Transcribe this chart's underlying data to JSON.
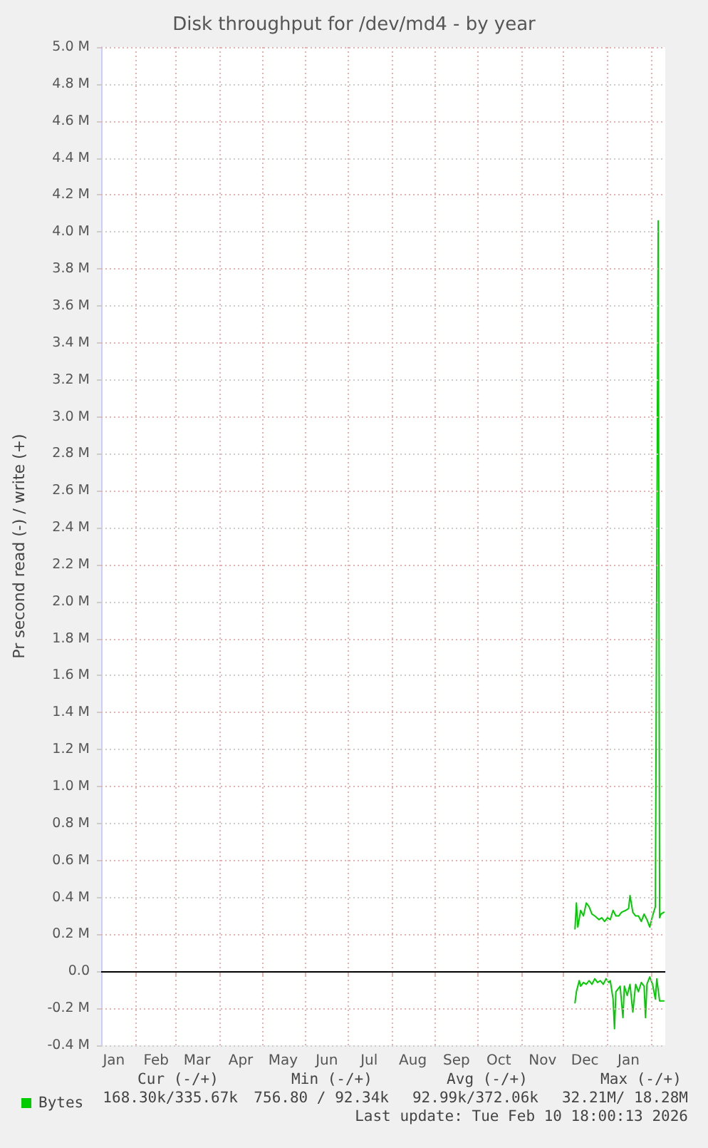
{
  "chart_data": {
    "type": "line",
    "title": "Disk throughput for /dev/md4 - by year",
    "ylabel": "Pr second read (-) / write (+)",
    "xlim": [
      "2025-01-07",
      "2026-02-11"
    ],
    "xticks": [
      {
        "value": "2025-01-16",
        "label": "Jan"
      },
      {
        "value": "2025-02-01",
        "label": null
      },
      {
        "value": "2025-02-15",
        "label": "Feb"
      },
      {
        "value": "2025-03-01",
        "label": null
      },
      {
        "value": "2025-03-16",
        "label": "Mar"
      },
      {
        "value": "2025-04-01",
        "label": null
      },
      {
        "value": "2025-04-16",
        "label": "Apr"
      },
      {
        "value": "2025-05-01",
        "label": null
      },
      {
        "value": "2025-05-16",
        "label": "May"
      },
      {
        "value": "2025-06-01",
        "label": null
      },
      {
        "value": "2025-06-16",
        "label": "Jun"
      },
      {
        "value": "2025-07-01",
        "label": null
      },
      {
        "value": "2025-07-16",
        "label": "Jul"
      },
      {
        "value": "2025-08-01",
        "label": null
      },
      {
        "value": "2025-08-16",
        "label": "Aug"
      },
      {
        "value": "2025-09-01",
        "label": null
      },
      {
        "value": "2025-09-16",
        "label": "Sep"
      },
      {
        "value": "2025-10-01",
        "label": null
      },
      {
        "value": "2025-10-16",
        "label": "Oct"
      },
      {
        "value": "2025-11-01",
        "label": null
      },
      {
        "value": "2025-11-16",
        "label": "Nov"
      },
      {
        "value": "2025-12-01",
        "label": null
      },
      {
        "value": "2025-12-16",
        "label": "Dec"
      },
      {
        "value": "2026-01-01",
        "label": null
      },
      {
        "value": "2026-01-16",
        "label": "Jan"
      },
      {
        "value": "2026-02-01",
        "label": null
      }
    ],
    "ylim": [
      -0.4,
      5.0
    ],
    "yticks": [
      {
        "value": -0.4,
        "label": "-0.4 M"
      },
      {
        "value": -0.2,
        "label": "-0.2 M"
      },
      {
        "value": 0,
        "label": "0.0"
      },
      {
        "value": 0.2,
        "label": "0.2 M"
      },
      {
        "value": 0.4,
        "label": "0.4 M"
      },
      {
        "value": 0.6,
        "label": "0.6 M"
      },
      {
        "value": 0.8,
        "label": "0.8 M"
      },
      {
        "value": 1.0,
        "label": "1.0 M"
      },
      {
        "value": 1.2,
        "label": "1.2 M"
      },
      {
        "value": 1.4,
        "label": "1.4 M"
      },
      {
        "value": 1.6,
        "label": "1.6 M"
      },
      {
        "value": 1.8,
        "label": "1.8 M"
      },
      {
        "value": 2.0,
        "label": "2.0 M"
      },
      {
        "value": 2.2,
        "label": "2.2 M"
      },
      {
        "value": 2.4,
        "label": "2.4 M"
      },
      {
        "value": 2.6,
        "label": "2.6 M"
      },
      {
        "value": 2.8,
        "label": "2.8 M"
      },
      {
        "value": 3.0,
        "label": "3.0 M"
      },
      {
        "value": 3.2,
        "label": "3.2 M"
      },
      {
        "value": 3.4,
        "label": "3.4 M"
      },
      {
        "value": 3.6,
        "label": "3.6 M"
      },
      {
        "value": 3.8,
        "label": "3.8 M"
      },
      {
        "value": 4.0,
        "label": "4.0 M"
      },
      {
        "value": 4.2,
        "label": "4.2 M"
      },
      {
        "value": 4.4,
        "label": "4.4 M"
      },
      {
        "value": 4.6,
        "label": "4.6 M"
      },
      {
        "value": 4.8,
        "label": "4.8 M"
      },
      {
        "value": 5.0,
        "label": "5.0 M"
      }
    ],
    "series": [
      {
        "name": "Bytes",
        "color": "#00cc00",
        "x": [
          "2025-12-09",
          "2025-12-10",
          "2025-12-11",
          "2025-12-13",
          "2025-12-15",
          "2025-12-17",
          "2025-12-19",
          "2025-12-21",
          "2025-12-23",
          "2025-12-26",
          "2025-12-28",
          "2025-12-30",
          "2026-01-01",
          "2026-01-03",
          "2026-01-05",
          "2026-01-07",
          "2026-01-09",
          "2026-01-11",
          "2026-01-14",
          "2026-01-16",
          "2026-01-17",
          "2026-01-19",
          "2026-01-21",
          "2026-01-23",
          "2026-01-25",
          "2026-01-27",
          "2026-01-29",
          "2026-01-31",
          "2026-02-02",
          "2026-02-04",
          "2026-02-06",
          "2026-02-07",
          "2026-02-08",
          "2026-02-10"
        ],
        "values": [
          0.23,
          0.37,
          0.24,
          0.33,
          0.3,
          0.37,
          0.35,
          0.31,
          0.3,
          0.28,
          0.29,
          0.27,
          0.29,
          0.28,
          0.33,
          0.3,
          0.3,
          0.32,
          0.33,
          0.34,
          0.41,
          0.32,
          0.3,
          0.3,
          0.27,
          0.31,
          0.28,
          0.24,
          0.3,
          0.35,
          4.06,
          0.29,
          0.31,
          0.32
        ]
      },
      {
        "color": "#00cc00",
        "x": [
          "2025-12-09",
          "2025-12-10",
          "2025-12-12",
          "2025-12-13",
          "2025-12-15",
          "2025-12-17",
          "2025-12-19",
          "2025-12-21",
          "2025-12-23",
          "2025-12-25",
          "2025-12-27",
          "2025-12-29",
          "2025-12-31",
          "2026-01-02",
          "2026-01-03",
          "2026-01-05",
          "2026-01-06",
          "2026-01-07",
          "2026-01-10",
          "2026-01-12",
          "2026-01-13",
          "2026-01-15",
          "2026-01-17",
          "2026-01-19",
          "2026-01-21",
          "2026-01-23",
          "2026-01-25",
          "2026-01-27",
          "2026-01-28",
          "2026-01-29",
          "2026-01-31",
          "2026-02-02",
          "2026-02-04",
          "2026-02-05",
          "2026-02-07",
          "2026-02-10"
        ],
        "values": [
          -0.17,
          -0.11,
          -0.05,
          -0.08,
          -0.06,
          -0.07,
          -0.05,
          -0.07,
          -0.04,
          -0.06,
          -0.05,
          -0.07,
          -0.04,
          -0.06,
          -0.05,
          -0.15,
          -0.31,
          -0.11,
          -0.08,
          -0.25,
          -0.08,
          -0.13,
          -0.07,
          -0.22,
          -0.07,
          -0.11,
          -0.06,
          -0.08,
          -0.25,
          -0.07,
          -0.03,
          -0.07,
          -0.15,
          -0.04,
          -0.16,
          -0.16
        ]
      }
    ],
    "ref_lines": [
      {
        "axis": "y",
        "value": 0,
        "color": "#000000"
      }
    ],
    "grid": true,
    "legend": "bottom left",
    "marker": "none",
    "line_style": "solid",
    "annotations": [
      "Cur (-/+)",
      "Min (-/+)",
      "Avg (-/+)",
      "Max (-/+)",
      "168.30k/335.67k",
      "756.80 / 92.34k",
      "92.99k/372.06k",
      "32.21M/ 18.28M",
      "Last update: Tue Feb 10 18:00:13 2026"
    ]
  }
}
